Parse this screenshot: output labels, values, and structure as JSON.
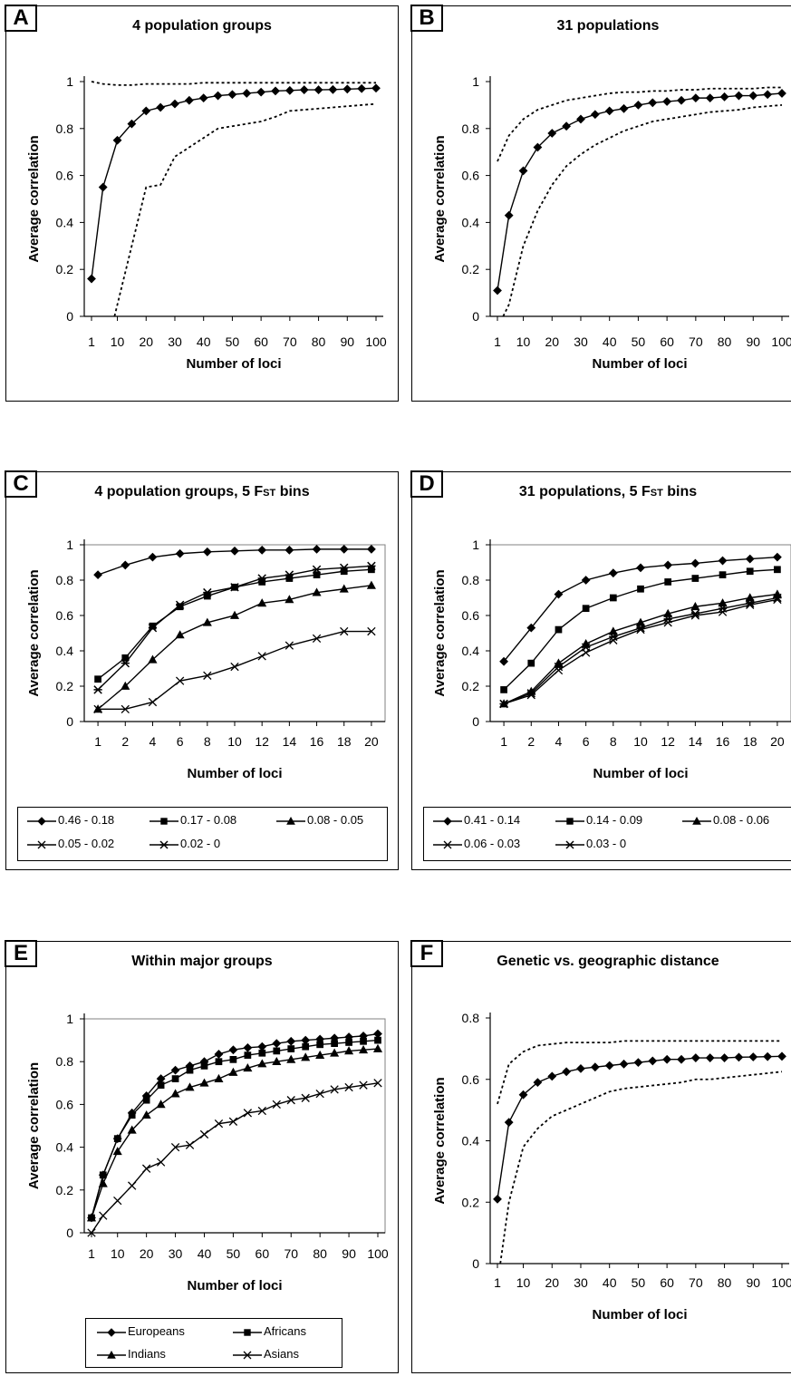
{
  "panels": [
    {
      "letter": "A",
      "title": "4 population groups",
      "chart_data": {
        "type": "line",
        "xlabel": "Number of loci",
        "ylabel": "Average correlation",
        "x_ticks": [
          1,
          10,
          20,
          30,
          40,
          50,
          60,
          70,
          80,
          90,
          100
        ],
        "y_ticks": [
          "0",
          "0.2",
          "0.4",
          "0.6",
          "0.8",
          "1"
        ],
        "xlim": [
          1,
          100
        ],
        "ylim": [
          0,
          1
        ],
        "series": [
          {
            "style": "solid",
            "marker": "diamond",
            "x": [
              1,
              5,
              10,
              15,
              20,
              25,
              30,
              35,
              40,
              45,
              50,
              55,
              60,
              65,
              70,
              75,
              80,
              85,
              90,
              95,
              100
            ],
            "y": [
              0.16,
              0.55,
              0.75,
              0.82,
              0.875,
              0.89,
              0.905,
              0.92,
              0.93,
              0.94,
              0.945,
              0.95,
              0.955,
              0.96,
              0.962,
              0.965,
              0.965,
              0.966,
              0.968,
              0.97,
              0.972
            ]
          },
          {
            "style": "dotted",
            "x": [
              1,
              5,
              10,
              15,
              20,
              25,
              30,
              35,
              40,
              45,
              50,
              55,
              60,
              65,
              70,
              75,
              80,
              85,
              90,
              95,
              100
            ],
            "y": [
              1.0,
              0.99,
              0.985,
              0.985,
              0.99,
              0.99,
              0.99,
              0.99,
              0.995,
              0.995,
              0.995,
              0.995,
              0.995,
              0.995,
              0.995,
              0.995,
              0.995,
              0.995,
              0.995,
              0.995,
              0.995
            ]
          },
          {
            "style": "dotted",
            "x": [
              9,
              12,
              15,
              18,
              20,
              25,
              30,
              35,
              40,
              45,
              50,
              55,
              60,
              65,
              70,
              75,
              80,
              85,
              90,
              95,
              100
            ],
            "y": [
              0.0,
              0.15,
              0.3,
              0.45,
              0.55,
              0.56,
              0.68,
              0.72,
              0.76,
              0.8,
              0.81,
              0.82,
              0.83,
              0.85,
              0.875,
              0.88,
              0.885,
              0.89,
              0.895,
              0.9,
              0.905
            ]
          }
        ]
      }
    },
    {
      "letter": "B",
      "title": "31 populations",
      "chart_data": {
        "type": "line",
        "xlabel": "Number of loci",
        "ylabel": "Average correlation",
        "x_ticks": [
          1,
          10,
          20,
          30,
          40,
          50,
          60,
          70,
          80,
          90,
          100
        ],
        "y_ticks": [
          "0",
          "0.2",
          "0.4",
          "0.6",
          "0.8",
          "1"
        ],
        "xlim": [
          1,
          100
        ],
        "ylim": [
          0,
          1
        ],
        "series": [
          {
            "style": "solid",
            "marker": "diamond",
            "x": [
              1,
              5,
              10,
              15,
              20,
              25,
              30,
              35,
              40,
              45,
              50,
              55,
              60,
              65,
              70,
              75,
              80,
              85,
              90,
              95,
              100
            ],
            "y": [
              0.11,
              0.43,
              0.62,
              0.72,
              0.78,
              0.81,
              0.84,
              0.86,
              0.875,
              0.885,
              0.9,
              0.91,
              0.915,
              0.92,
              0.93,
              0.93,
              0.935,
              0.94,
              0.94,
              0.945,
              0.95
            ]
          },
          {
            "style": "dotted",
            "x": [
              1,
              5,
              10,
              15,
              20,
              25,
              30,
              35,
              40,
              45,
              50,
              55,
              60,
              65,
              70,
              75,
              80,
              85,
              90,
              95,
              100
            ],
            "y": [
              0.66,
              0.77,
              0.84,
              0.88,
              0.9,
              0.92,
              0.93,
              0.94,
              0.95,
              0.955,
              0.955,
              0.96,
              0.96,
              0.965,
              0.965,
              0.97,
              0.97,
              0.97,
              0.97,
              0.975,
              0.975
            ]
          },
          {
            "style": "dotted",
            "x": [
              3,
              5,
              10,
              15,
              20,
              25,
              30,
              35,
              40,
              45,
              50,
              55,
              60,
              65,
              70,
              75,
              80,
              85,
              90,
              95,
              100
            ],
            "y": [
              0.0,
              0.05,
              0.3,
              0.45,
              0.56,
              0.64,
              0.69,
              0.73,
              0.76,
              0.79,
              0.81,
              0.83,
              0.84,
              0.85,
              0.86,
              0.87,
              0.875,
              0.88,
              0.89,
              0.895,
              0.9
            ]
          }
        ]
      }
    },
    {
      "letter": "C",
      "title_pre": "4 population groups, 5 ",
      "title_fst": "Fst",
      "title_post": " bins",
      "chart_data": {
        "type": "line",
        "xlabel": "Number of loci",
        "ylabel": "Average correlation",
        "x_ticks": [
          1,
          2,
          4,
          6,
          8,
          10,
          12,
          14,
          16,
          18,
          20
        ],
        "y_ticks": [
          "0",
          "0.2",
          "0.4",
          "0.6",
          "0.8",
          "1"
        ],
        "ylim": [
          0,
          1
        ],
        "categorical_x": true,
        "series": [
          {
            "name": "0.46 - 0.18",
            "marker": "diamond",
            "y": [
              0.83,
              0.885,
              0.93,
              0.95,
              0.96,
              0.965,
              0.97,
              0.97,
              0.975,
              0.975,
              0.975
            ]
          },
          {
            "name": "0.17 - 0.08",
            "marker": "square",
            "y": [
              0.24,
              0.36,
              0.54,
              0.65,
              0.71,
              0.76,
              0.79,
              0.81,
              0.83,
              0.85,
              0.86
            ]
          },
          {
            "name": "0.08 - 0.05",
            "marker": "triangle",
            "y": [
              0.07,
              0.2,
              0.35,
              0.49,
              0.56,
              0.6,
              0.67,
              0.69,
              0.73,
              0.75,
              0.77
            ]
          },
          {
            "name": "0.05 - 0.02",
            "marker": "x",
            "y": [
              0.07,
              0.07,
              0.11,
              0.23,
              0.26,
              0.31,
              0.37,
              0.43,
              0.47,
              0.51,
              0.51
            ]
          },
          {
            "name": "0.02 - 0",
            "marker": "star",
            "y": [
              0.18,
              0.33,
              0.53,
              0.66,
              0.73,
              0.76,
              0.81,
              0.83,
              0.86,
              0.87,
              0.88
            ]
          }
        ]
      }
    },
    {
      "letter": "D",
      "title_pre": "31 populations, 5 ",
      "title_fst": "Fst",
      "title_post": " bins",
      "chart_data": {
        "type": "line",
        "xlabel": "Number of loci",
        "ylabel": "Average correlation",
        "x_ticks": [
          1,
          2,
          4,
          6,
          8,
          10,
          12,
          14,
          16,
          18,
          20
        ],
        "y_ticks": [
          "0",
          "0.2",
          "0.4",
          "0.6",
          "0.8",
          "1"
        ],
        "ylim": [
          0,
          1
        ],
        "categorical_x": true,
        "series": [
          {
            "name": "0.41 - 0.14",
            "marker": "diamond",
            "y": [
              0.34,
              0.53,
              0.72,
              0.8,
              0.84,
              0.87,
              0.885,
              0.895,
              0.91,
              0.92,
              0.93
            ]
          },
          {
            "name": "0.14 - 0.09",
            "marker": "square",
            "y": [
              0.18,
              0.33,
              0.52,
              0.64,
              0.7,
              0.75,
              0.79,
              0.81,
              0.83,
              0.85,
              0.86
            ]
          },
          {
            "name": "0.08 - 0.06",
            "marker": "triangle",
            "y": [
              0.1,
              0.17,
              0.33,
              0.44,
              0.51,
              0.56,
              0.61,
              0.65,
              0.67,
              0.7,
              0.72
            ]
          },
          {
            "name": "0.06 - 0.03",
            "marker": "x",
            "y": [
              0.1,
              0.15,
              0.29,
              0.39,
              0.46,
              0.52,
              0.56,
              0.6,
              0.62,
              0.66,
              0.69
            ]
          },
          {
            "name": "0.03 - 0",
            "marker": "star",
            "y": [
              0.1,
              0.16,
              0.31,
              0.42,
              0.48,
              0.53,
              0.58,
              0.61,
              0.64,
              0.67,
              0.7
            ]
          }
        ]
      }
    },
    {
      "letter": "E",
      "title": "Within major groups",
      "chart_data": {
        "type": "line",
        "xlabel": "Number of loci",
        "ylabel": "Average correlation",
        "x_ticks": [
          1,
          10,
          20,
          30,
          40,
          50,
          60,
          70,
          80,
          90,
          100
        ],
        "y_ticks": [
          "0",
          "0.2",
          "0.4",
          "0.6",
          "0.8",
          "1"
        ],
        "xlim": [
          1,
          100
        ],
        "ylim": [
          0,
          1
        ],
        "series": [
          {
            "name": "Europeans",
            "marker": "diamond",
            "x": [
              1,
              5,
              10,
              15,
              20,
              25,
              30,
              35,
              40,
              45,
              50,
              55,
              60,
              65,
              70,
              75,
              80,
              85,
              90,
              95,
              100
            ],
            "y": [
              0.07,
              0.27,
              0.44,
              0.56,
              0.64,
              0.72,
              0.76,
              0.78,
              0.8,
              0.835,
              0.855,
              0.865,
              0.87,
              0.885,
              0.895,
              0.9,
              0.905,
              0.91,
              0.915,
              0.92,
              0.93
            ]
          },
          {
            "name": "Africans",
            "marker": "square",
            "x": [
              1,
              5,
              10,
              15,
              20,
              25,
              30,
              35,
              40,
              45,
              50,
              55,
              60,
              65,
              70,
              75,
              80,
              85,
              90,
              95,
              100
            ],
            "y": [
              0.07,
              0.27,
              0.44,
              0.55,
              0.62,
              0.69,
              0.72,
              0.76,
              0.78,
              0.8,
              0.81,
              0.83,
              0.84,
              0.85,
              0.86,
              0.87,
              0.88,
              0.885,
              0.89,
              0.895,
              0.9
            ]
          },
          {
            "name": "Indians",
            "marker": "triangle",
            "x": [
              1,
              5,
              10,
              15,
              20,
              25,
              30,
              35,
              40,
              45,
              50,
              55,
              60,
              65,
              70,
              75,
              80,
              85,
              90,
              95,
              100
            ],
            "y": [
              0.07,
              0.23,
              0.38,
              0.48,
              0.55,
              0.6,
              0.65,
              0.68,
              0.7,
              0.72,
              0.75,
              0.77,
              0.79,
              0.8,
              0.81,
              0.82,
              0.83,
              0.84,
              0.85,
              0.855,
              0.86
            ]
          },
          {
            "name": "Asians",
            "marker": "x",
            "x": [
              1,
              5,
              10,
              15,
              20,
              25,
              30,
              35,
              40,
              45,
              50,
              55,
              60,
              65,
              70,
              75,
              80,
              85,
              90,
              95,
              100
            ],
            "y": [
              0.0,
              0.08,
              0.15,
              0.22,
              0.3,
              0.33,
              0.4,
              0.41,
              0.46,
              0.51,
              0.52,
              0.56,
              0.57,
              0.6,
              0.62,
              0.63,
              0.65,
              0.67,
              0.68,
              0.69,
              0.7
            ]
          }
        ]
      }
    },
    {
      "letter": "F",
      "title": "Genetic vs. geographic distance",
      "chart_data": {
        "type": "line",
        "xlabel": "Number of loci",
        "ylabel": "Average correlation",
        "x_ticks": [
          1,
          10,
          20,
          30,
          40,
          50,
          60,
          70,
          80,
          90,
          100
        ],
        "y_ticks": [
          "0",
          "0.2",
          "0.4",
          "0.6",
          "0.8"
        ],
        "xlim": [
          1,
          100
        ],
        "ylim": [
          0,
          0.8
        ],
        "series": [
          {
            "style": "solid",
            "marker": "diamond",
            "x": [
              1,
              5,
              10,
              15,
              20,
              25,
              30,
              35,
              40,
              45,
              50,
              55,
              60,
              65,
              70,
              75,
              80,
              85,
              90,
              95,
              100
            ],
            "y": [
              0.21,
              0.46,
              0.55,
              0.59,
              0.61,
              0.625,
              0.635,
              0.64,
              0.645,
              0.65,
              0.655,
              0.66,
              0.665,
              0.665,
              0.67,
              0.67,
              0.67,
              0.672,
              0.673,
              0.674,
              0.675
            ]
          },
          {
            "style": "dotted",
            "x": [
              1,
              5,
              10,
              15,
              20,
              25,
              30,
              35,
              40,
              45,
              50,
              55,
              60,
              65,
              70,
              75,
              80,
              85,
              90,
              95,
              100
            ],
            "y": [
              0.52,
              0.65,
              0.69,
              0.71,
              0.715,
              0.72,
              0.72,
              0.72,
              0.72,
              0.725,
              0.725,
              0.725,
              0.725,
              0.725,
              0.725,
              0.725,
              0.725,
              0.725,
              0.725,
              0.725,
              0.725
            ]
          },
          {
            "style": "dotted",
            "x": [
              2,
              5,
              10,
              15,
              20,
              25,
              30,
              35,
              40,
              45,
              50,
              55,
              60,
              65,
              70,
              75,
              80,
              85,
              90,
              95,
              100
            ],
            "y": [
              0.0,
              0.2,
              0.38,
              0.44,
              0.48,
              0.5,
              0.52,
              0.54,
              0.56,
              0.57,
              0.575,
              0.58,
              0.585,
              0.59,
              0.6,
              0.6,
              0.605,
              0.61,
              0.615,
              0.62,
              0.625
            ]
          }
        ]
      }
    }
  ]
}
